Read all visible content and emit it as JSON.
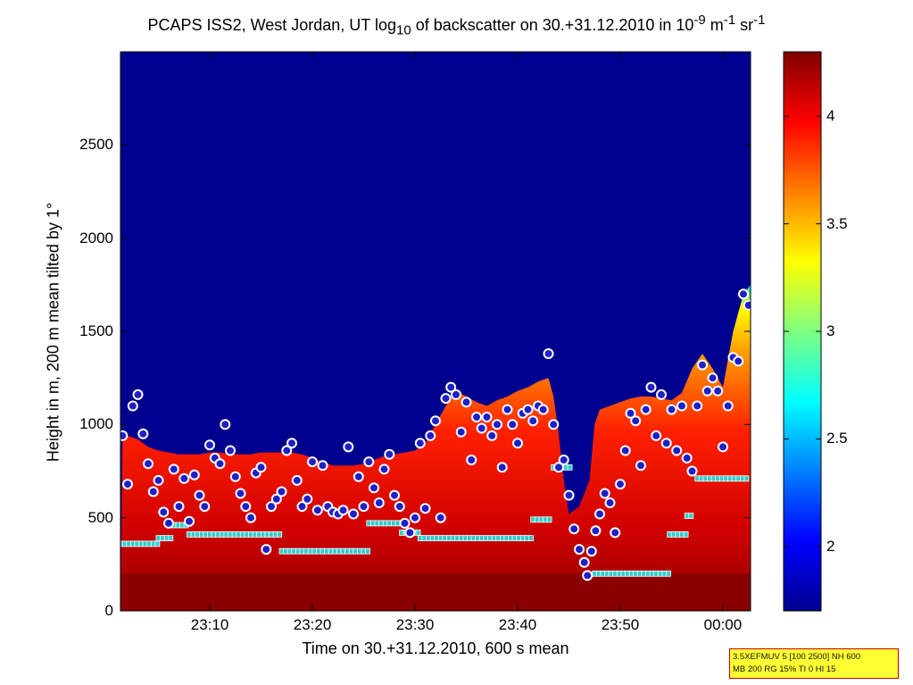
{
  "chart_data": {
    "type": "heatmap",
    "title": {
      "pre": "PCAPS ISS2, West Jordan, UT log",
      "sub": "10",
      "mid": " of backscatter on 30.+31.12.2010 in 10",
      "sup1": "-9",
      "unit1": " m",
      "sup2": "-1",
      "unit2": " sr",
      "sup3": "-1"
    },
    "xlabel": "Time on 30.+31.12.2010, 600 s mean",
    "ylabel": "Height in m, 200 m mean tilted by 1°",
    "x_ticks": [
      "23:10",
      "23:20",
      "23:30",
      "23:40",
      "23:50",
      "00:00"
    ],
    "x_tick_minutes": [
      1390,
      1400,
      1410,
      1420,
      1430,
      1440
    ],
    "xlim_minutes": [
      1381.3,
      1442.7
    ],
    "y_ticks": [
      "0",
      "500",
      "1000",
      "1500",
      "2000",
      "2500"
    ],
    "y_tick_values": [
      0,
      500,
      1000,
      1500,
      2000,
      2500
    ],
    "ylim": [
      0,
      3000
    ],
    "colorbar": {
      "ticks": [
        "2",
        "2.5",
        "3",
        "3.5",
        "4"
      ],
      "tick_values": [
        2,
        2.5,
        3,
        3.5,
        4
      ],
      "range": [
        1.7,
        4.3
      ],
      "colormap": "jet"
    },
    "top_layer_height": [
      [
        1381.5,
        950
      ],
      [
        1383,
        920
      ],
      [
        1384,
        880
      ],
      [
        1385,
        860
      ],
      [
        1386,
        850
      ],
      [
        1387,
        840
      ],
      [
        1388,
        840
      ],
      [
        1389,
        840
      ],
      [
        1390,
        850
      ],
      [
        1391,
        850
      ],
      [
        1392,
        840
      ],
      [
        1393,
        840
      ],
      [
        1394,
        840
      ],
      [
        1395,
        850
      ],
      [
        1396,
        850
      ],
      [
        1397,
        850
      ],
      [
        1398,
        850
      ],
      [
        1399,
        840
      ],
      [
        1400,
        820
      ],
      [
        1401,
        800
      ],
      [
        1402,
        780
      ],
      [
        1403,
        780
      ],
      [
        1404,
        780
      ],
      [
        1405,
        790
      ],
      [
        1406,
        810
      ],
      [
        1407,
        830
      ],
      [
        1408,
        840
      ],
      [
        1409,
        850
      ],
      [
        1410,
        860
      ],
      [
        1411,
        900
      ],
      [
        1412,
        1000
      ],
      [
        1413,
        1100
      ],
      [
        1414,
        1180
      ],
      [
        1415,
        1150
      ],
      [
        1416,
        1120
      ],
      [
        1417,
        1100
      ],
      [
        1418,
        1130
      ],
      [
        1419,
        1150
      ],
      [
        1420,
        1180
      ],
      [
        1421,
        1200
      ],
      [
        1422,
        1230
      ],
      [
        1423,
        1250
      ],
      [
        1423.5,
        1150
      ],
      [
        1424,
        950
      ],
      [
        1424.5,
        700
      ],
      [
        1425,
        520
      ],
      [
        1426,
        560
      ],
      [
        1427,
        700
      ],
      [
        1427.5,
        1000
      ],
      [
        1428,
        1080
      ],
      [
        1429,
        1100
      ],
      [
        1430,
        1120
      ],
      [
        1431,
        1140
      ],
      [
        1432,
        1150
      ],
      [
        1433,
        1150
      ],
      [
        1434,
        1140
      ],
      [
        1435,
        1130
      ],
      [
        1436,
        1170
      ],
      [
        1437,
        1300
      ],
      [
        1438,
        1380
      ],
      [
        1439,
        1300
      ],
      [
        1440,
        1200
      ],
      [
        1441,
        1500
      ],
      [
        1442,
        1700
      ],
      [
        1442.7,
        1750
      ]
    ],
    "circle_markers": [
      [
        1381.5,
        940
      ],
      [
        1382,
        680
      ],
      [
        1382.5,
        1100
      ],
      [
        1383,
        1160
      ],
      [
        1383.5,
        950
      ],
      [
        1384,
        790
      ],
      [
        1384.5,
        640
      ],
      [
        1385,
        700
      ],
      [
        1385.5,
        530
      ],
      [
        1386,
        470
      ],
      [
        1386.5,
        760
      ],
      [
        1387,
        560
      ],
      [
        1387.5,
        710
      ],
      [
        1388,
        480
      ],
      [
        1388.5,
        730
      ],
      [
        1389,
        620
      ],
      [
        1389.5,
        560
      ],
      [
        1390,
        890
      ],
      [
        1390.5,
        820
      ],
      [
        1391,
        790
      ],
      [
        1391.5,
        1000
      ],
      [
        1392,
        860
      ],
      [
        1392.5,
        720
      ],
      [
        1393,
        630
      ],
      [
        1393.5,
        560
      ],
      [
        1394,
        500
      ],
      [
        1394.5,
        740
      ],
      [
        1395,
        770
      ],
      [
        1395.5,
        330
      ],
      [
        1396,
        560
      ],
      [
        1396.5,
        600
      ],
      [
        1397,
        640
      ],
      [
        1397.5,
        860
      ],
      [
        1398,
        900
      ],
      [
        1398.5,
        700
      ],
      [
        1399,
        560
      ],
      [
        1399.5,
        600
      ],
      [
        1400,
        800
      ],
      [
        1400.5,
        540
      ],
      [
        1401,
        780
      ],
      [
        1401.5,
        560
      ],
      [
        1402,
        530
      ],
      [
        1402.5,
        520
      ],
      [
        1403,
        540
      ],
      [
        1403.5,
        880
      ],
      [
        1404,
        520
      ],
      [
        1404.5,
        720
      ],
      [
        1405,
        560
      ],
      [
        1405.5,
        800
      ],
      [
        1406,
        660
      ],
      [
        1406.5,
        580
      ],
      [
        1407,
        760
      ],
      [
        1407.5,
        840
      ],
      [
        1408,
        620
      ],
      [
        1408.5,
        560
      ],
      [
        1409,
        470
      ],
      [
        1409.5,
        420
      ],
      [
        1410,
        500
      ],
      [
        1410.5,
        900
      ],
      [
        1411,
        550
      ],
      [
        1411.5,
        940
      ],
      [
        1412,
        1020
      ],
      [
        1412.5,
        500
      ],
      [
        1413,
        1140
      ],
      [
        1413.5,
        1200
      ],
      [
        1414,
        1160
      ],
      [
        1414.5,
        960
      ],
      [
        1415,
        1120
      ],
      [
        1415.5,
        810
      ],
      [
        1416,
        1040
      ],
      [
        1416.5,
        980
      ],
      [
        1417,
        1040
      ],
      [
        1417.5,
        940
      ],
      [
        1418,
        1000
      ],
      [
        1418.5,
        770
      ],
      [
        1419,
        1080
      ],
      [
        1419.5,
        1000
      ],
      [
        1420,
        900
      ],
      [
        1420.5,
        1060
      ],
      [
        1421,
        1080
      ],
      [
        1421.5,
        1020
      ],
      [
        1422,
        1100
      ],
      [
        1422.5,
        1080
      ],
      [
        1423,
        1380
      ],
      [
        1423.5,
        1000
      ],
      [
        1424,
        770
      ],
      [
        1424.5,
        810
      ],
      [
        1425,
        620
      ],
      [
        1425.5,
        440
      ],
      [
        1426,
        330
      ],
      [
        1426.5,
        260
      ],
      [
        1426.8,
        190
      ],
      [
        1427.2,
        320
      ],
      [
        1427.6,
        430
      ],
      [
        1428,
        520
      ],
      [
        1428.5,
        630
      ],
      [
        1429,
        580
      ],
      [
        1429.5,
        420
      ],
      [
        1430,
        680
      ],
      [
        1430.5,
        860
      ],
      [
        1431,
        1060
      ],
      [
        1431.5,
        1020
      ],
      [
        1432,
        780
      ],
      [
        1432.5,
        1080
      ],
      [
        1433,
        1200
      ],
      [
        1433.5,
        940
      ],
      [
        1434,
        1160
      ],
      [
        1434.5,
        900
      ],
      [
        1435,
        1080
      ],
      [
        1435.5,
        860
      ],
      [
        1436,
        1100
      ],
      [
        1436.5,
        820
      ],
      [
        1437,
        750
      ],
      [
        1437.5,
        1100
      ],
      [
        1438,
        1320
      ],
      [
        1438.5,
        1180
      ],
      [
        1439,
        1250
      ],
      [
        1439.5,
        1180
      ],
      [
        1440,
        880
      ],
      [
        1440.5,
        1100
      ],
      [
        1441,
        1360
      ],
      [
        1441.5,
        1340
      ],
      [
        1442,
        1700
      ],
      [
        1442.5,
        1640
      ]
    ],
    "square_markers": [
      [
        1381.3,
        1385,
        360
      ],
      [
        1385,
        1386.5,
        390
      ],
      [
        1386.5,
        1388,
        460
      ],
      [
        1388,
        1397,
        410
      ],
      [
        1397,
        1405.5,
        320
      ],
      [
        1405.5,
        1408.7,
        470
      ],
      [
        1408.7,
        1410.5,
        420
      ],
      [
        1410.5,
        1421.5,
        390
      ],
      [
        1421.5,
        1423.5,
        490
      ],
      [
        1423.5,
        1425.5,
        770
      ],
      [
        1427.5,
        1434.8,
        200
      ],
      [
        1434.8,
        1436.5,
        410
      ],
      [
        1436.5,
        1437.2,
        510
      ],
      [
        1437.5,
        1442.7,
        710
      ]
    ]
  },
  "infobox": {
    "line1": "3.5XEFMUV 5 [100 2500] NH 600",
    "line2": "MB 200 RG 15% TI 0 HI 15"
  },
  "colors": {
    "background_low": "#00008f",
    "base_layer": "#800000",
    "circle_fill": "#2020c8",
    "circle_edge": "#ffffff",
    "square_fill": "#33cccc"
  }
}
